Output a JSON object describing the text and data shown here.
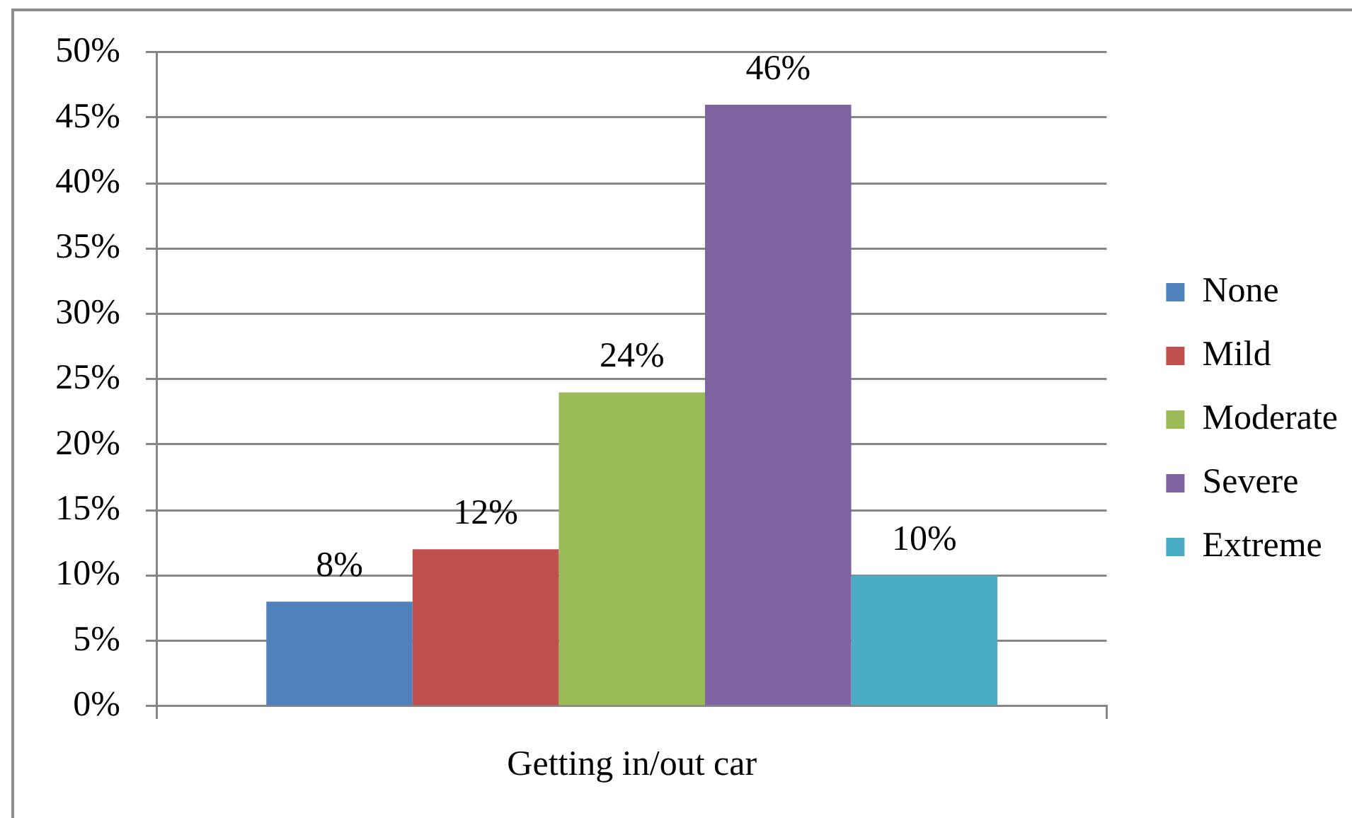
{
  "chart_data": {
    "type": "bar",
    "categories": [
      "Getting in/out car"
    ],
    "series": [
      {
        "name": "None",
        "color": "#4f81bd",
        "values": [
          8
        ],
        "value_labels": [
          "8%"
        ]
      },
      {
        "name": "Mild",
        "color": "#c0504d",
        "values": [
          12
        ],
        "value_labels": [
          "12%"
        ]
      },
      {
        "name": "Moderate",
        "color": "#9bbb59",
        "values": [
          24
        ],
        "value_labels": [
          "24%"
        ]
      },
      {
        "name": "Severe",
        "color": "#8064a2",
        "values": [
          46
        ],
        "value_labels": [
          "46%"
        ]
      },
      {
        "name": "Extreme",
        "color": "#4bacc6",
        "values": [
          10
        ],
        "value_labels": [
          "10%"
        ]
      }
    ],
    "ylim": [
      0,
      50
    ],
    "yticks": [
      {
        "value": 0,
        "label": "0%"
      },
      {
        "value": 5,
        "label": "5%"
      },
      {
        "value": 10,
        "label": "10%"
      },
      {
        "value": 15,
        "label": "15%"
      },
      {
        "value": 20,
        "label": "20%"
      },
      {
        "value": 25,
        "label": "25%"
      },
      {
        "value": 30,
        "label": "30%"
      },
      {
        "value": 35,
        "label": "35%"
      },
      {
        "value": 40,
        "label": "40%"
      },
      {
        "value": 45,
        "label": "45%"
      },
      {
        "value": 50,
        "label": "50%"
      }
    ],
    "grid": "y",
    "legend": "right"
  }
}
